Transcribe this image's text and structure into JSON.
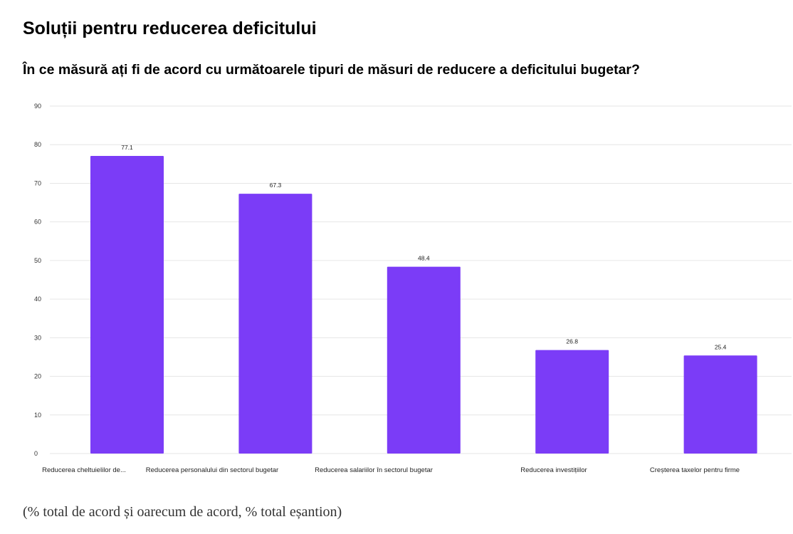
{
  "page": {
    "title": "Soluții pentru reducerea deficitului",
    "subtitle": "În ce măsură ați fi de acord cu următoarele tipuri de măsuri de reducere a deficitului bugetar?",
    "footnote": "(% total de acord și oarecum de acord, % total eșantion)"
  },
  "chart_data": {
    "type": "bar",
    "title": "",
    "xlabel": "",
    "ylabel": "",
    "categories": [
      "Reducerea cheltuielilor de...",
      "Reducerea personalului din sectorul bugetar",
      "Reducerea salariilor în sectorul bugetar",
      "Reducerea investițiilor",
      "Creșterea taxelor pentru firme"
    ],
    "values": [
      77.1,
      67.3,
      48.4,
      26.8,
      25.4
    ],
    "value_labels": [
      "77.1",
      "67.3",
      "48.4",
      "26.8",
      "25.4"
    ],
    "ylim": [
      0,
      90
    ],
    "yticks": [
      0,
      10,
      20,
      30,
      40,
      50,
      60,
      70,
      80,
      90
    ],
    "grid": true,
    "legend": "none",
    "bar_color": "#7b3cf7",
    "grid_color": "#e6e6e6"
  }
}
